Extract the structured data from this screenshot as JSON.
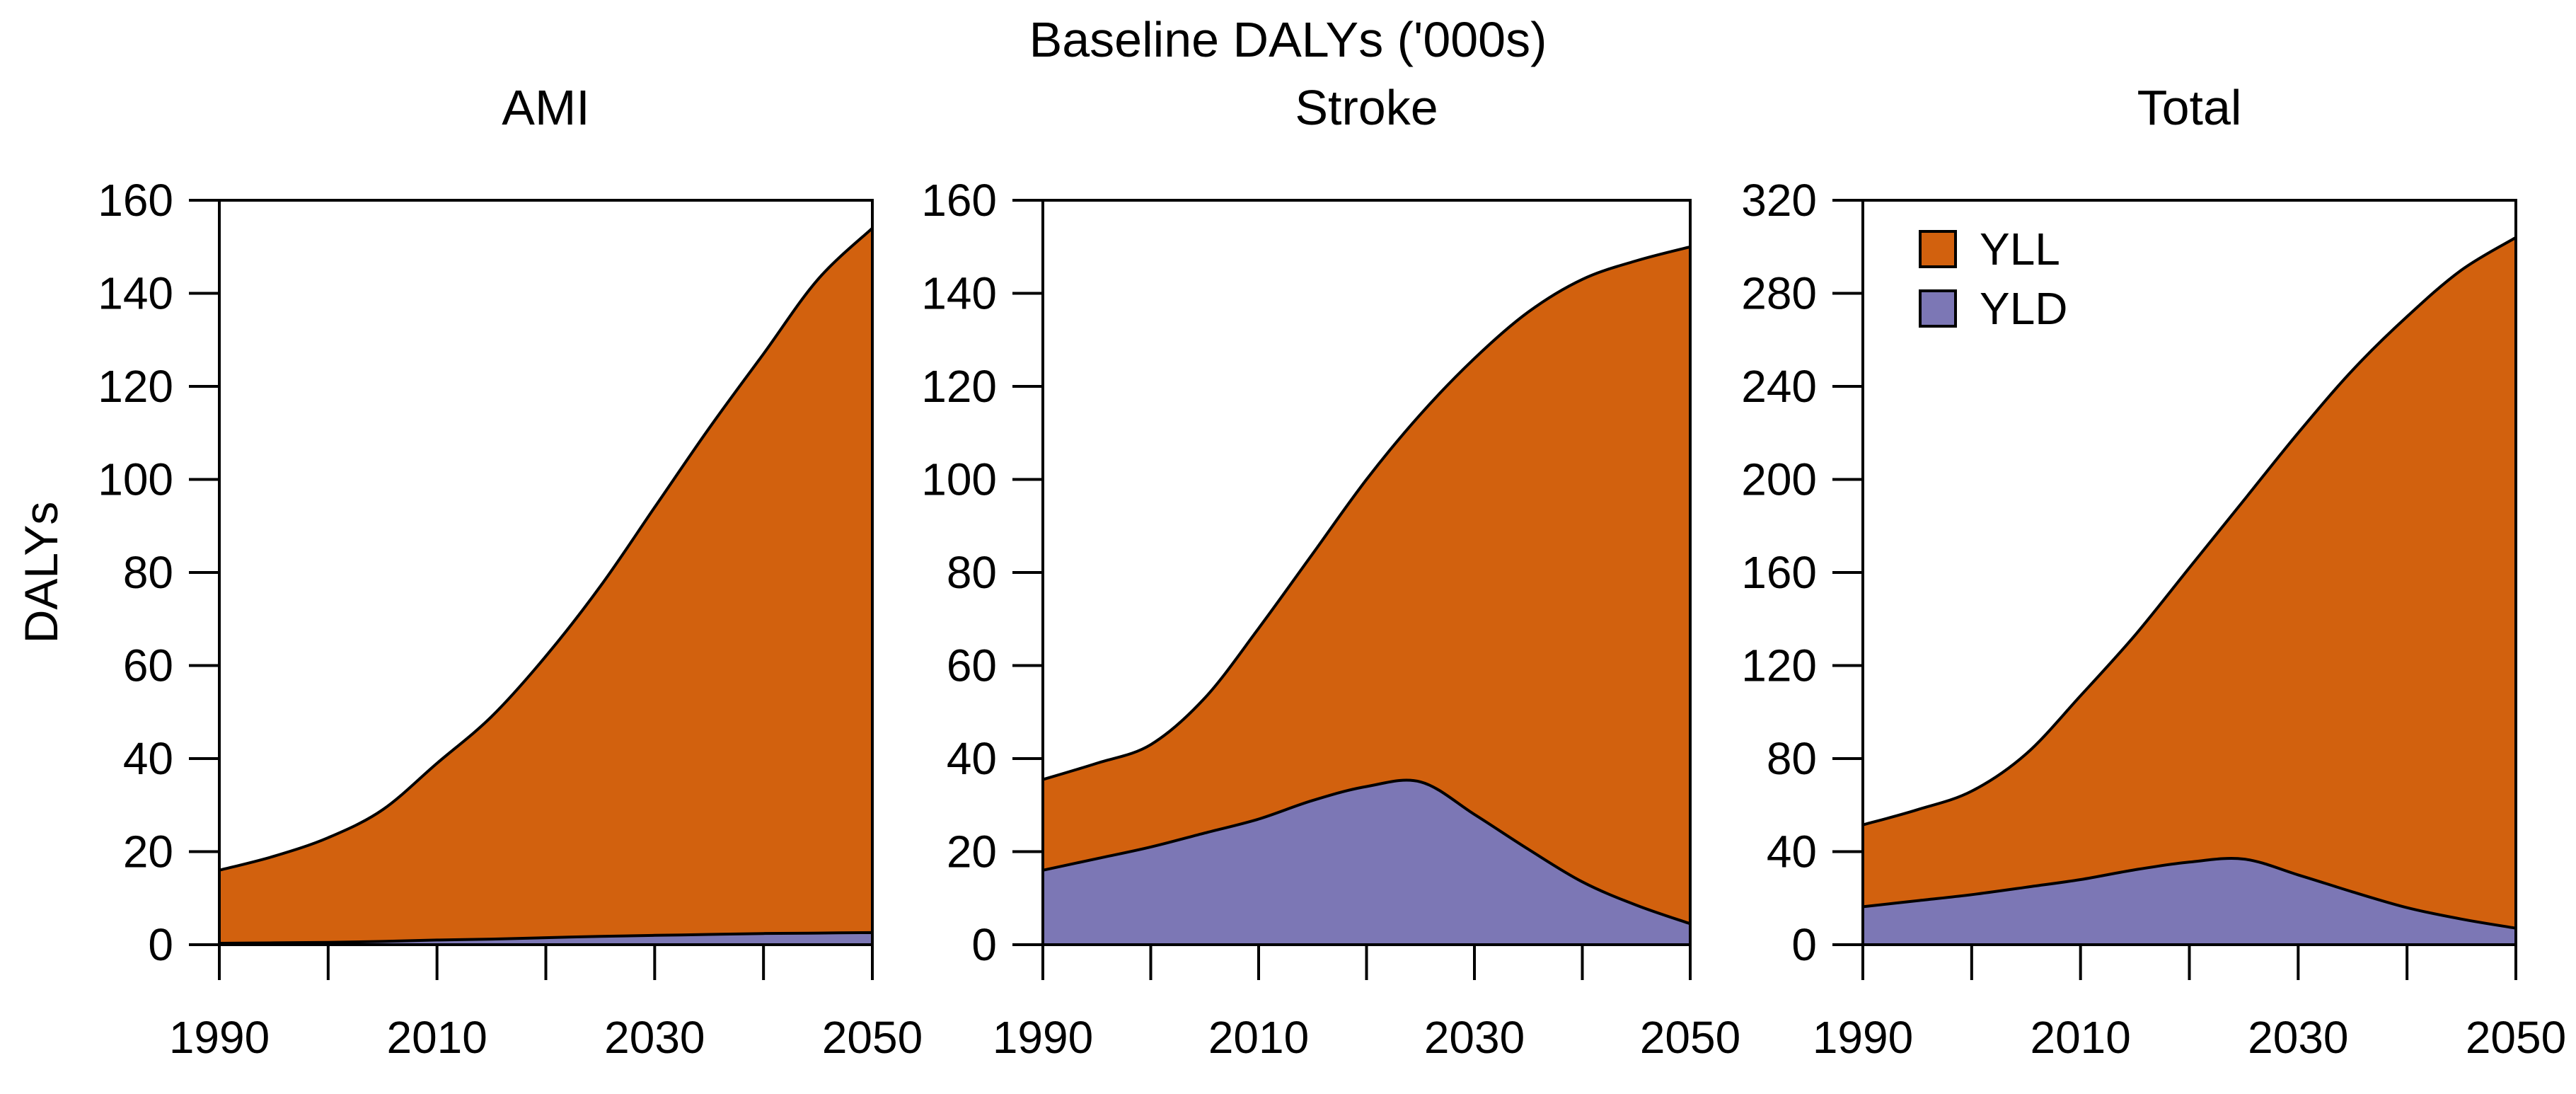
{
  "figure": {
    "title": "Baseline DALYs ('000s)",
    "ylabel": "DALYs",
    "background": "#ffffff",
    "text_color": "#000000"
  },
  "legend": {
    "items": [
      {
        "label": "YLL",
        "color": "#D2610E"
      },
      {
        "label": "YLD",
        "color": "#7C77B5"
      }
    ]
  },
  "chart_data": [
    {
      "type": "area",
      "title": "AMI",
      "stacked": true,
      "stack_order": [
        "YLD",
        "YLL"
      ],
      "x": [
        1990,
        1995,
        2000,
        2005,
        2010,
        2015,
        2020,
        2025,
        2030,
        2035,
        2040,
        2045,
        2050
      ],
      "series": [
        {
          "name": "YLL",
          "color": "#D2610E",
          "values": [
            15.7,
            18.6,
            22.5,
            28.3,
            38.0,
            47.8,
            60.5,
            75.2,
            92.0,
            108.8,
            124.6,
            140.5,
            151.4
          ]
        },
        {
          "name": "YLD",
          "color": "#7C77B5",
          "values": [
            0.3,
            0.4,
            0.5,
            0.7,
            1.0,
            1.2,
            1.5,
            1.8,
            2.0,
            2.2,
            2.4,
            2.5,
            2.6
          ]
        }
      ],
      "xlabel": "",
      "ylabel": "DALYs",
      "xlim": [
        1990,
        2050
      ],
      "ylim": [
        0,
        160
      ],
      "yticks": [
        0,
        20,
        40,
        60,
        80,
        100,
        120,
        140,
        160
      ],
      "xticks": [
        1990,
        2000,
        2010,
        2020,
        2030,
        2040,
        2050
      ],
      "xtick_labels": [
        "1990",
        "",
        "2010",
        "",
        "2030",
        "",
        "2050"
      ],
      "grid": false
    },
    {
      "type": "area",
      "title": "Stroke",
      "stacked": true,
      "stack_order": [
        "YLD",
        "YLL"
      ],
      "x": [
        1990,
        1995,
        2000,
        2005,
        2010,
        2015,
        2020,
        2025,
        2030,
        2035,
        2040,
        2045,
        2050
      ],
      "series": [
        {
          "name": "YLL",
          "color": "#D2610E",
          "values": [
            19.5,
            20.5,
            22.0,
            29.0,
            41.0,
            53.0,
            66.0,
            79.0,
            98.0,
            115.5,
            129.5,
            138.5,
            145.5
          ]
        },
        {
          "name": "YLD",
          "color": "#7C77B5",
          "values": [
            16.0,
            18.5,
            21.0,
            24.0,
            27.0,
            31.0,
            34.0,
            35.0,
            28.0,
            20.5,
            13.5,
            8.5,
            4.5
          ]
        }
      ],
      "xlabel": "",
      "ylabel": "",
      "xlim": [
        1990,
        2050
      ],
      "ylim": [
        0,
        160
      ],
      "yticks": [
        0,
        20,
        40,
        60,
        80,
        100,
        120,
        140,
        160
      ],
      "xticks": [
        1990,
        2000,
        2010,
        2020,
        2030,
        2040,
        2050
      ],
      "xtick_labels": [
        "1990",
        "",
        "2010",
        "",
        "2030",
        "",
        "2050"
      ],
      "grid": false
    },
    {
      "type": "area",
      "title": "Total",
      "stacked": true,
      "stack_order": [
        "YLD",
        "YLL"
      ],
      "legend_position": "top-left",
      "x": [
        1990,
        1995,
        2000,
        2005,
        2010,
        2015,
        2020,
        2025,
        2030,
        2035,
        2040,
        2045,
        2050
      ],
      "series": [
        {
          "name": "YLL",
          "color": "#D2610E",
          "values": [
            35.2,
            39.1,
            44.5,
            57.3,
            79.0,
            100.8,
            126.5,
            154.2,
            190.0,
            224.3,
            254.1,
            279.0,
            296.9
          ]
        },
        {
          "name": "YLD",
          "color": "#7C77B5",
          "values": [
            16.3,
            18.9,
            21.5,
            24.7,
            28.0,
            32.2,
            35.5,
            36.8,
            30.0,
            22.7,
            15.9,
            11.0,
            7.1
          ]
        }
      ],
      "xlabel": "",
      "ylabel": "",
      "xlim": [
        1990,
        2050
      ],
      "ylim": [
        0,
        320
      ],
      "yticks": [
        0,
        40,
        80,
        120,
        160,
        200,
        240,
        280,
        320
      ],
      "xticks": [
        1990,
        2000,
        2010,
        2020,
        2030,
        2040,
        2050
      ],
      "xtick_labels": [
        "1990",
        "",
        "2010",
        "",
        "2030",
        "",
        "2050"
      ],
      "grid": false
    }
  ]
}
